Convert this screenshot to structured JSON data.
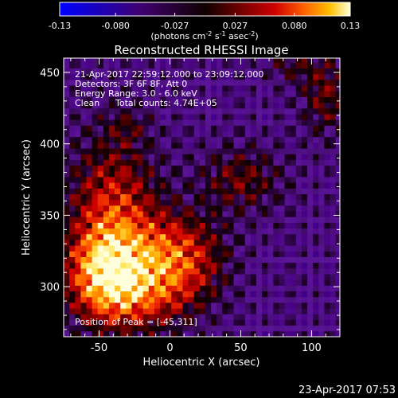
{
  "chart_data": {
    "type": "heatmap",
    "title": "Reconstructed RHESSI Image",
    "xlabel": "Heliocentric X (arcsec)",
    "ylabel": "Heliocentric Y (arcsec)",
    "xlim": [
      -75,
      120
    ],
    "ylim": [
      265,
      460
    ],
    "x_ticks": [
      -50,
      0,
      50,
      100
    ],
    "y_ticks": [
      300,
      350,
      400,
      450
    ],
    "colorbar": {
      "range": [
        -0.13,
        0.13
      ],
      "ticks": [
        "-0.13",
        "-0.080",
        "-0.027",
        "0.027",
        "0.080",
        "0.13"
      ],
      "ticks_values": [
        -0.13,
        -0.08,
        -0.027,
        0.027,
        0.08,
        0.13
      ],
      "label": "(photons cm",
      "label_sup1": "-2",
      "label_mid": " s",
      "label_sup2": "-1",
      "label_mid2": " asec",
      "label_sup3": "-2",
      "label_end": ")"
    },
    "annotations": {
      "time_range": "21-Apr-2017 22:59:12.000 to 23:09:12.000",
      "detectors": "Detectors: 3F 6F 8F, Att 0",
      "energy": "Energy Range: 3.0 - 6.0 keV",
      "algorithm": "Clean",
      "total_counts": "Total counts: 4.74E+05",
      "peak": "Position of Peak = [-45,311]"
    },
    "peak": {
      "x": -45,
      "y": 311
    },
    "sources": [
      {
        "x": -40,
        "y": 345,
        "sx": 22,
        "sy": 40,
        "amp": 0.11
      },
      {
        "x": -45,
        "y": 311,
        "sx": 18,
        "sy": 20,
        "amp": 0.12
      },
      {
        "x": 5,
        "y": 322,
        "sx": 22,
        "sy": 20,
        "amp": 0.11
      },
      {
        "x": -20,
        "y": 295,
        "sx": 28,
        "sy": 18,
        "amp": 0.08
      },
      {
        "x": 50,
        "y": 375,
        "sx": 20,
        "sy": 16,
        "amp": 0.06
      },
      {
        "x": 110,
        "y": 435,
        "sx": 12,
        "sy": 20,
        "amp": 0.06
      },
      {
        "x": 85,
        "y": 455,
        "sx": 12,
        "sy": 8,
        "amp": 0.04
      },
      {
        "x": -30,
        "y": 412,
        "sx": 10,
        "sy": 8,
        "amp": 0.03
      }
    ],
    "background_level": -0.035,
    "background_ripple": 0.03
  },
  "footer": {
    "timestamp": "23-Apr-2017 07:53"
  }
}
